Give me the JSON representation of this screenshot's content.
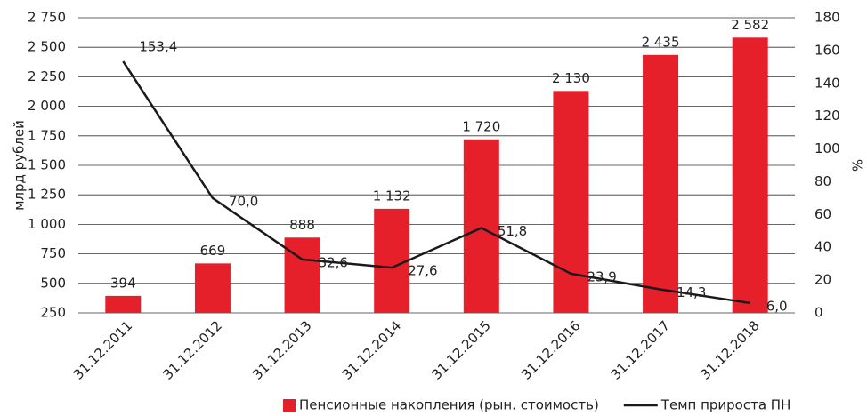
{
  "chart_data": {
    "type": "bar_line",
    "categories": [
      "31.12.2011",
      "31.12.2012",
      "31.12.2013",
      "31.12.2014",
      "31.12.2015",
      "31.12.2016",
      "31.12.2017",
      "31.12.2018"
    ],
    "series": [
      {
        "name": "Пенсионные накопления (рын. стоимость)",
        "type": "bar",
        "color": "#e5202a",
        "values": [
          394,
          669,
          888,
          1132,
          1720,
          2130,
          2435,
          2582
        ],
        "value_labels": [
          "394",
          "669",
          "888",
          "1 132",
          "1 720",
          "2 130",
          "2 435",
          "2 582"
        ]
      },
      {
        "name": "Темп прироста ПН",
        "type": "line",
        "axis": "y2",
        "color": "#1a1a1a",
        "values": [
          153.4,
          70.0,
          32.6,
          27.6,
          51.8,
          23.9,
          14.3,
          6.0
        ],
        "value_labels": [
          "153,4",
          "70,0",
          "32,6",
          "27,6",
          "51,8",
          "23,9",
          "14,3",
          "6,0"
        ]
      }
    ],
    "ylabel": "млрд  рублей",
    "y2label": "%",
    "ylim": [
      250,
      2750
    ],
    "yticks": [
      250,
      500,
      750,
      {
        "value": 1000,
        "label": "1 000"
      },
      {
        "value": 1250,
        "label": "1 250"
      },
      {
        "value": 1500,
        "label": "1 500"
      },
      {
        "value": 1750,
        "label": "1 750"
      },
      {
        "value": 2000,
        "label": "2 000"
      },
      {
        "value": 2250,
        "label": "2 250"
      },
      {
        "value": 2500,
        "label": "2 500"
      },
      {
        "value": 2750,
        "label": "2 750"
      }
    ],
    "y2lim": [
      0,
      180
    ],
    "y2ticks": [
      0,
      20,
      40,
      60,
      80,
      100,
      120,
      140,
      160,
      180
    ],
    "grid": true,
    "legend": "bottom"
  }
}
